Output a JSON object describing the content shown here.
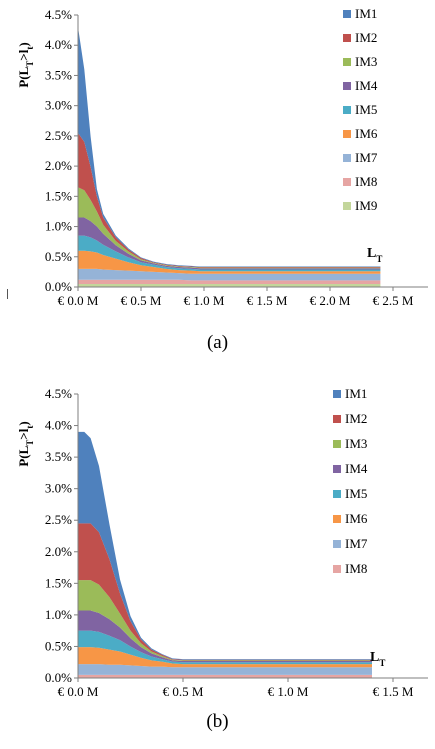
{
  "chart_data": [
    {
      "type": "area",
      "ylabel": "P(L_T>l_t)",
      "xlabel": "L_T",
      "ylim": [
        0,
        0.045
      ],
      "y_ticks": [
        "0.0%",
        "0.5%",
        "1.0%",
        "1.5%",
        "2.0%",
        "2.5%",
        "3.0%",
        "3.5%",
        "4.0%",
        "4.5%"
      ],
      "xlim": [
        0,
        2.5
      ],
      "x_ticks": [
        "€ 0.0 M",
        "€ 0.5 M",
        "€ 1.0 M",
        "€ 1.5 M",
        "€ 2.0 M",
        "€ 2.5 M"
      ],
      "legend_position": "right",
      "x": [
        0,
        0.05,
        0.1,
        0.15,
        0.2,
        0.3,
        0.4,
        0.5,
        0.6,
        0.7,
        0.8,
        0.9,
        0.97,
        1.2,
        1.5,
        1.8,
        2.1,
        2.4
      ],
      "series": [
        {
          "name": "IM9",
          "color": "#c3d69b",
          "values": [
            0.0005,
            0.0005,
            0.0005,
            0.0005,
            0.0005,
            0.0005,
            0.0005,
            0.0005,
            0.0005,
            0.0005,
            0.0005,
            0.0005,
            0.0005,
            0.0005,
            0.0005,
            0.0005,
            0.0005,
            0.0005
          ]
        },
        {
          "name": "IM8",
          "color": "#e6a5a3",
          "values": [
            0.0007,
            0.0007,
            0.0007,
            0.0007,
            0.0007,
            0.0007,
            0.0007,
            0.0007,
            0.0007,
            0.0007,
            0.0007,
            0.0006,
            0.0006,
            0.0006,
            0.0006,
            0.0006,
            0.0006,
            0.0006
          ]
        },
        {
          "name": "IM7",
          "color": "#95b3d7",
          "values": [
            0.0018,
            0.0018,
            0.0018,
            0.0018,
            0.0017,
            0.0016,
            0.0015,
            0.0014,
            0.0013,
            0.0012,
            0.0011,
            0.0011,
            0.0011,
            0.0011,
            0.0011,
            0.0011,
            0.0011,
            0.0011
          ]
        },
        {
          "name": "IM6",
          "color": "#f79646",
          "values": [
            0.003,
            0.003,
            0.0029,
            0.0027,
            0.0024,
            0.0019,
            0.0014,
            0.001,
            0.0008,
            0.0006,
            0.0005,
            0.0005,
            0.0004,
            0.0004,
            0.0004,
            0.0004,
            0.0004,
            0.0004
          ]
        },
        {
          "name": "IM5",
          "color": "#4bacc6",
          "values": [
            0.0025,
            0.0025,
            0.0023,
            0.002,
            0.0017,
            0.0012,
            0.0008,
            0.0005,
            0.0004,
            0.0003,
            0.0003,
            0.0003,
            0.0003,
            0.0003,
            0.0003,
            0.0003,
            0.0003,
            0.0003
          ]
        },
        {
          "name": "IM4",
          "color": "#8064a2",
          "values": [
            0.003,
            0.003,
            0.0027,
            0.0023,
            0.0018,
            0.001,
            0.0006,
            0.0003,
            0.0002,
            0.0002,
            0.0002,
            0.0002,
            0.0002,
            0.0002,
            0.0002,
            0.0002,
            0.0002,
            0.0002
          ]
        },
        {
          "name": "IM3",
          "color": "#9bbb59",
          "values": [
            0.005,
            0.0045,
            0.0035,
            0.0025,
            0.0015,
            0.0007,
            0.0004,
            0.0002,
            0.0001,
            0.0001,
            0.0001,
            0.0001,
            0.0001,
            0.0001,
            0.0001,
            0.0001,
            0.0001,
            0.0001
          ]
        },
        {
          "name": "IM2",
          "color": "#c0504d",
          "values": [
            0.009,
            0.008,
            0.0055,
            0.0025,
            0.0012,
            0.0006,
            0.0003,
            0.0002,
            0.0001,
            0.0001,
            0.0001,
            0.0001,
            0.0001,
            0.0001,
            0.0001,
            0.0001,
            0.0001,
            0.0001
          ]
        },
        {
          "name": "IM1",
          "color": "#4f81bd",
          "values": [
            0.0175,
            0.012,
            0.005,
            0.0012,
            0.0006,
            0.0003,
            0.0002,
            0.0001,
            0.0001,
            0.0001,
            0.0001,
            0.0001,
            0.0001,
            0.0001,
            0.0001,
            0.0001,
            0.0001,
            0.0001
          ]
        }
      ]
    },
    {
      "type": "area",
      "ylabel": "P(L_T>l_t)",
      "xlabel": "L_T",
      "ylim": [
        0,
        0.045
      ],
      "y_ticks": [
        "0.0%",
        "0.5%",
        "1.0%",
        "1.5%",
        "2.0%",
        "2.5%",
        "3.0%",
        "3.5%",
        "4.0%",
        "4.5%"
      ],
      "xlim": [
        0,
        1.5
      ],
      "x_ticks": [
        "€ 0.0 M",
        "€ 0.5 M",
        "€ 1.0 M",
        "€ 1.5 M"
      ],
      "legend_position": "right",
      "x": [
        0,
        0.03,
        0.06,
        0.1,
        0.15,
        0.2,
        0.25,
        0.3,
        0.35,
        0.4,
        0.45,
        0.5,
        0.55,
        0.7,
        0.9,
        1.1,
        1.3,
        1.4
      ],
      "series": [
        {
          "name": "IM8",
          "color": "#e6a5a3",
          "values": [
            0.0005,
            0.0005,
            0.0005,
            0.0005,
            0.0005,
            0.0005,
            0.0005,
            0.0005,
            0.0005,
            0.0005,
            0.0005,
            0.0005,
            0.0005,
            0.0005,
            0.0005,
            0.0005,
            0.0005,
            0.0005
          ]
        },
        {
          "name": "IM7",
          "color": "#95b3d7",
          "values": [
            0.0017,
            0.0017,
            0.0017,
            0.0017,
            0.0016,
            0.0016,
            0.0015,
            0.0014,
            0.0013,
            0.0013,
            0.0012,
            0.0012,
            0.0012,
            0.0012,
            0.0012,
            0.0012,
            0.0012,
            0.0012
          ]
        },
        {
          "name": "IM6",
          "color": "#f79646",
          "values": [
            0.0027,
            0.0027,
            0.0027,
            0.0026,
            0.0024,
            0.0021,
            0.0017,
            0.0013,
            0.001,
            0.0008,
            0.0006,
            0.0005,
            0.0005,
            0.0005,
            0.0005,
            0.0005,
            0.0005,
            0.0005
          ]
        },
        {
          "name": "IM5",
          "color": "#4bacc6",
          "values": [
            0.0026,
            0.0026,
            0.0026,
            0.0025,
            0.0022,
            0.0018,
            0.0013,
            0.0009,
            0.0006,
            0.0004,
            0.0003,
            0.0003,
            0.0003,
            0.0003,
            0.0003,
            0.0003,
            0.0003,
            0.0003
          ]
        },
        {
          "name": "IM4",
          "color": "#8064a2",
          "values": [
            0.0032,
            0.0032,
            0.0032,
            0.003,
            0.0026,
            0.002,
            0.0013,
            0.0008,
            0.0005,
            0.0003,
            0.0002,
            0.0002,
            0.0002,
            0.0002,
            0.0002,
            0.0002,
            0.0002,
            0.0002
          ]
        },
        {
          "name": "IM3",
          "color": "#9bbb59",
          "values": [
            0.0048,
            0.0048,
            0.0048,
            0.0045,
            0.0035,
            0.0022,
            0.0012,
            0.0006,
            0.0003,
            0.0002,
            0.0001,
            0.0001,
            0.0001,
            0.0001,
            0.0001,
            0.0001,
            0.0001,
            0.0001
          ]
        },
        {
          "name": "IM2",
          "color": "#c0504d",
          "values": [
            0.009,
            0.009,
            0.009,
            0.0083,
            0.006,
            0.0032,
            0.0015,
            0.0006,
            0.0003,
            0.0002,
            0.0001,
            0.0001,
            0.0001,
            0.0001,
            0.0001,
            0.0001,
            0.0001,
            0.0001
          ]
        },
        {
          "name": "IM1",
          "color": "#4f81bd",
          "values": [
            0.0145,
            0.0145,
            0.0135,
            0.0105,
            0.0055,
            0.0022,
            0.0008,
            0.0003,
            0.0002,
            0.0001,
            0.0001,
            0.0001,
            0.0001,
            0.0001,
            0.0001,
            0.0001,
            0.0001,
            0.0001
          ]
        }
      ]
    }
  ],
  "captions": {
    "a": "(a)",
    "b": "(b)"
  }
}
